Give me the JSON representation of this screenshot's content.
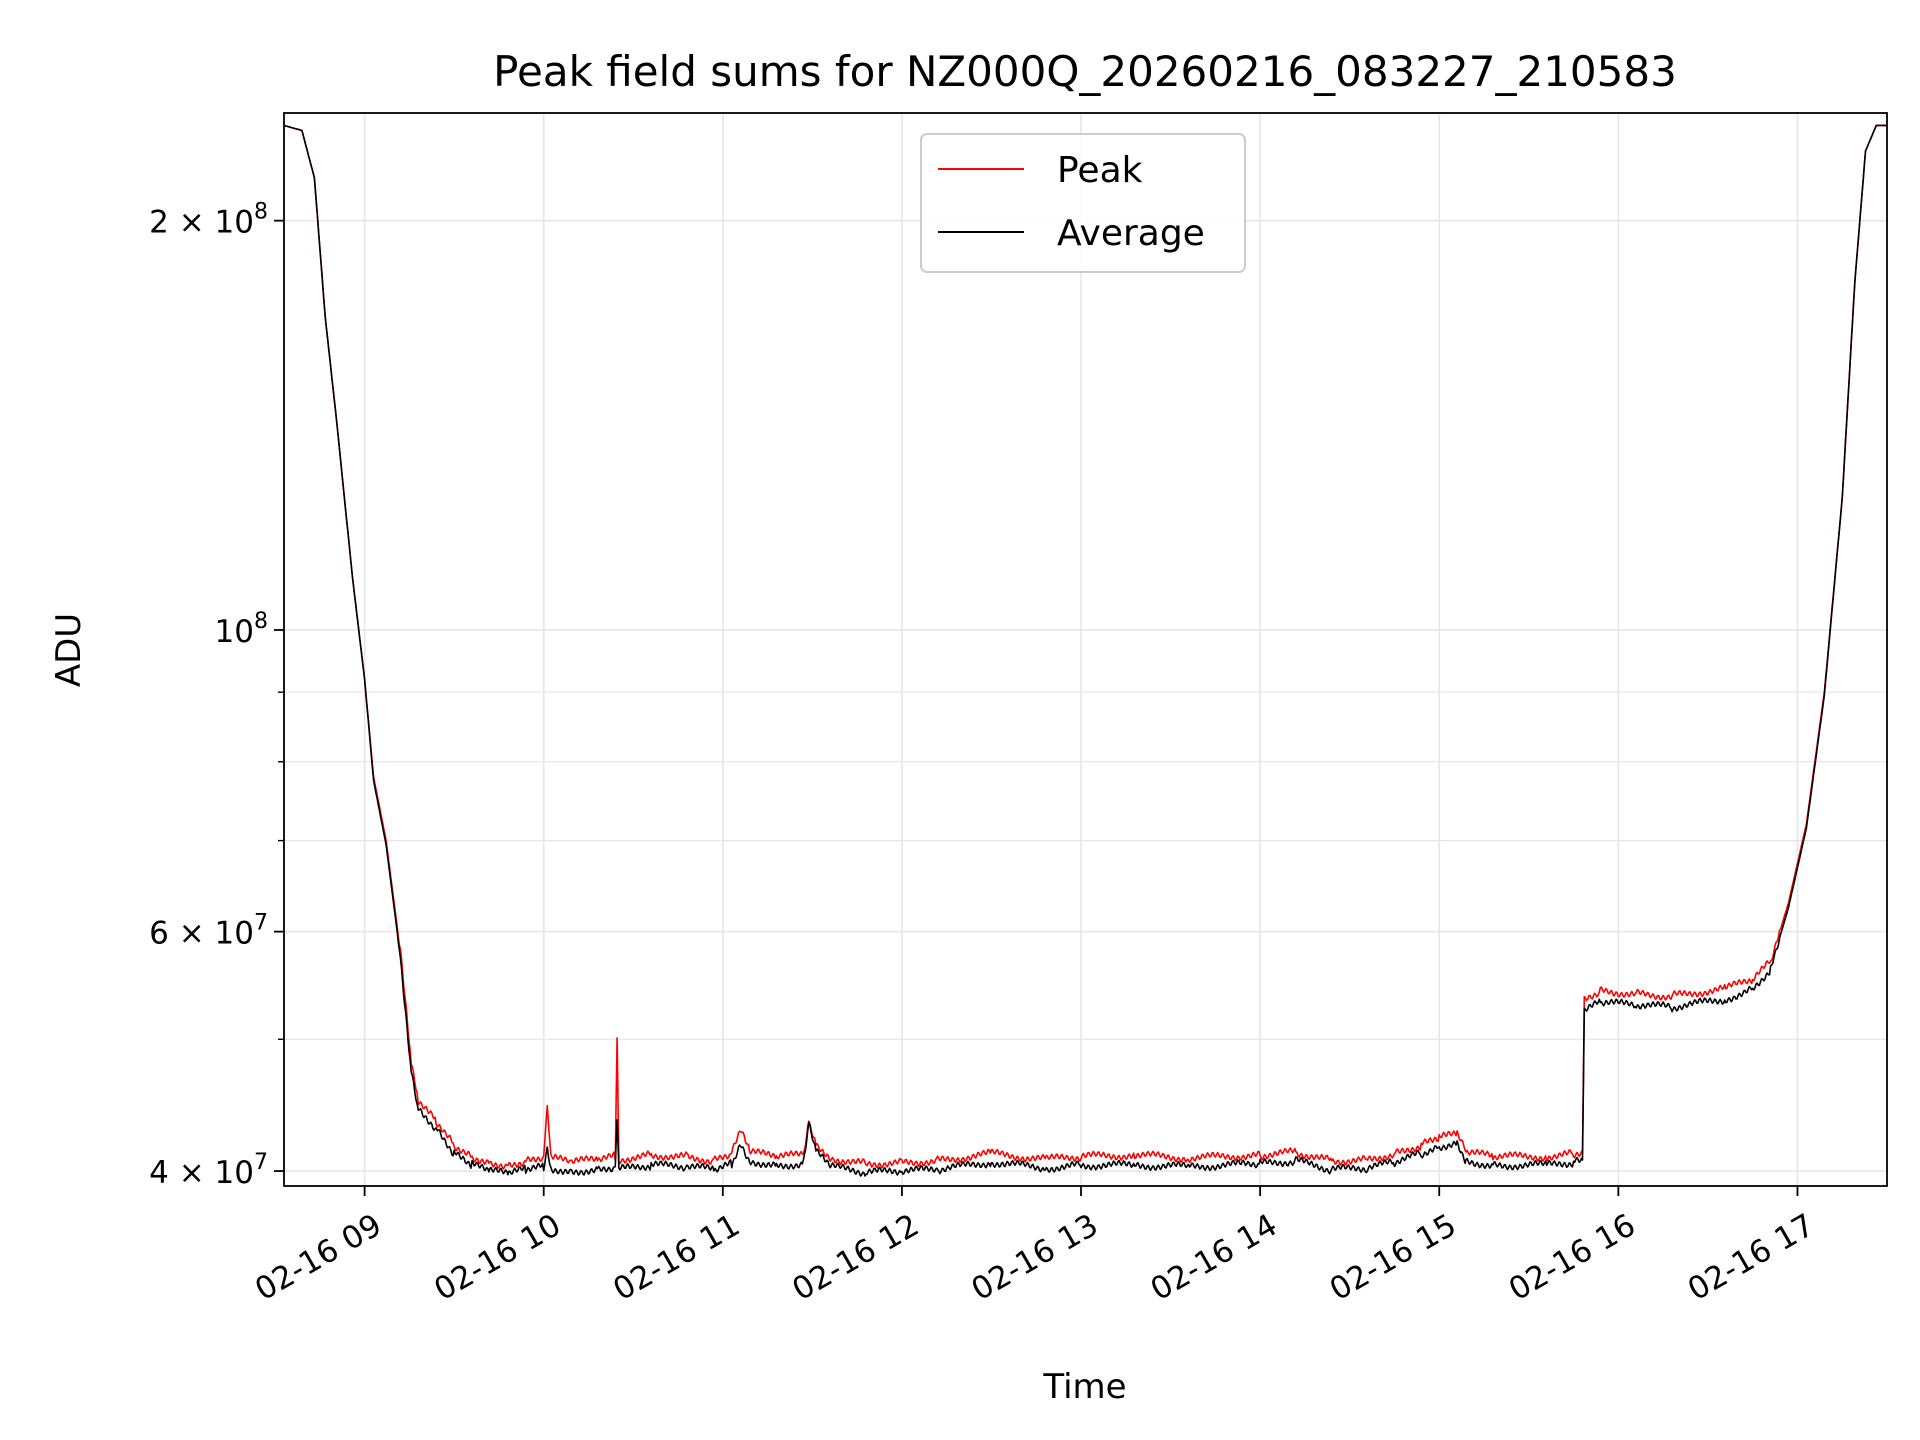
{
  "chart_data": {
    "type": "line",
    "title": "Peak field sums for NZ000Q_20260216_083227_210583",
    "xlabel": "Time",
    "ylabel": "ADU",
    "yscale": "log",
    "xlim_hours": [
      8.55,
      17.5
    ],
    "ylim": [
      39000000,
      240000000
    ],
    "grid": true,
    "legend_position": "upper center",
    "x_ticks": [
      {
        "hour": 9,
        "label": "02-16 09"
      },
      {
        "hour": 10,
        "label": "02-16 10"
      },
      {
        "hour": 11,
        "label": "02-16 11"
      },
      {
        "hour": 12,
        "label": "02-16 12"
      },
      {
        "hour": 13,
        "label": "02-16 13"
      },
      {
        "hour": 14,
        "label": "02-16 14"
      },
      {
        "hour": 15,
        "label": "02-16 15"
      },
      {
        "hour": 16,
        "label": "02-16 16"
      },
      {
        "hour": 17,
        "label": "02-16 17"
      }
    ],
    "y_major_ticks": [
      {
        "value": 40000000,
        "mant": "4",
        "op": "×",
        "base": "10",
        "exp": "7"
      },
      {
        "value": 60000000,
        "mant": "6",
        "op": "×",
        "base": "10",
        "exp": "7"
      },
      {
        "value": 100000000,
        "mant": "",
        "op": "",
        "base": "10",
        "exp": "8"
      },
      {
        "value": 200000000,
        "mant": "2",
        "op": "×",
        "base": "10",
        "exp": "8"
      }
    ],
    "y_minor_ticks": [
      50000000,
      70000000,
      80000000,
      90000000
    ],
    "series": [
      {
        "name": "Peak",
        "color": "#ff0000",
        "points": [
          [
            8.55,
            235000000
          ],
          [
            8.65,
            233000000
          ],
          [
            8.72,
            215000000
          ],
          [
            8.78,
            170000000
          ],
          [
            8.85,
            140000000
          ],
          [
            8.93,
            110000000
          ],
          [
            9.0,
            92000000
          ],
          [
            9.05,
            78000000
          ],
          [
            9.12,
            70000000
          ],
          [
            9.2,
            58000000
          ],
          [
            9.26,
            48000000
          ],
          [
            9.3,
            45000000
          ],
          [
            9.4,
            43500000
          ],
          [
            9.5,
            41800000
          ],
          [
            9.6,
            41000000
          ],
          [
            9.7,
            40600000
          ],
          [
            9.8,
            40400000
          ],
          [
            9.9,
            40700000
          ],
          [
            10.0,
            41000000
          ],
          [
            10.02,
            44500000
          ],
          [
            10.04,
            40900000
          ],
          [
            10.15,
            40600000
          ],
          [
            10.3,
            40800000
          ],
          [
            10.4,
            41000000
          ],
          [
            10.41,
            50500000
          ],
          [
            10.42,
            40800000
          ],
          [
            10.6,
            41100000
          ],
          [
            10.8,
            41000000
          ],
          [
            10.95,
            40700000
          ],
          [
            11.05,
            41200000
          ],
          [
            11.1,
            42800000
          ],
          [
            11.15,
            41300000
          ],
          [
            11.3,
            41000000
          ],
          [
            11.45,
            41100000
          ],
          [
            11.48,
            43600000
          ],
          [
            11.52,
            42000000
          ],
          [
            11.6,
            40900000
          ],
          [
            11.8,
            40500000
          ],
          [
            12.0,
            40600000
          ],
          [
            12.2,
            40700000
          ],
          [
            12.5,
            41200000
          ],
          [
            12.8,
            40800000
          ],
          [
            13.0,
            41000000
          ],
          [
            13.3,
            41100000
          ],
          [
            13.6,
            40900000
          ],
          [
            14.0,
            41100000
          ],
          [
            14.2,
            41300000
          ],
          [
            14.4,
            40700000
          ],
          [
            14.6,
            40800000
          ],
          [
            14.75,
            41200000
          ],
          [
            14.9,
            41800000
          ],
          [
            15.0,
            42300000
          ],
          [
            15.1,
            42600000
          ],
          [
            15.15,
            41300000
          ],
          [
            15.3,
            41000000
          ],
          [
            15.6,
            41000000
          ],
          [
            15.75,
            41200000
          ],
          [
            15.8,
            41400000
          ],
          [
            15.81,
            53500000
          ],
          [
            15.9,
            54300000
          ],
          [
            16.1,
            54000000
          ],
          [
            16.3,
            53800000
          ],
          [
            16.6,
            54500000
          ],
          [
            16.75,
            55300000
          ],
          [
            16.85,
            57000000
          ],
          [
            16.95,
            63000000
          ],
          [
            17.05,
            72000000
          ],
          [
            17.15,
            90000000
          ],
          [
            17.25,
            125000000
          ],
          [
            17.32,
            180000000
          ],
          [
            17.38,
            225000000
          ],
          [
            17.44,
            235000000
          ],
          [
            17.5,
            235000000
          ]
        ]
      },
      {
        "name": "Average",
        "color": "#000000",
        "points": [
          [
            8.55,
            235000000
          ],
          [
            8.65,
            233000000
          ],
          [
            8.72,
            215000000
          ],
          [
            8.78,
            170000000
          ],
          [
            8.85,
            140000000
          ],
          [
            8.93,
            110000000
          ],
          [
            9.0,
            92000000
          ],
          [
            9.05,
            77500000
          ],
          [
            9.12,
            69500000
          ],
          [
            9.2,
            57500000
          ],
          [
            9.26,
            47500000
          ],
          [
            9.3,
            44500000
          ],
          [
            9.4,
            43000000
          ],
          [
            9.5,
            41200000
          ],
          [
            9.6,
            40400000
          ],
          [
            9.7,
            40000000
          ],
          [
            9.8,
            39800000
          ],
          [
            9.9,
            40100000
          ],
          [
            10.0,
            40300000
          ],
          [
            10.02,
            41800000
          ],
          [
            10.04,
            40200000
          ],
          [
            10.15,
            40000000
          ],
          [
            10.3,
            40100000
          ],
          [
            10.4,
            40300000
          ],
          [
            10.41,
            43600000
          ],
          [
            10.42,
            40100000
          ],
          [
            10.6,
            40400000
          ],
          [
            10.8,
            40300000
          ],
          [
            10.95,
            40100000
          ],
          [
            11.05,
            40500000
          ],
          [
            11.1,
            42000000
          ],
          [
            11.15,
            40700000
          ],
          [
            11.3,
            40400000
          ],
          [
            11.45,
            40500000
          ],
          [
            11.48,
            43200000
          ],
          [
            11.52,
            41300000
          ],
          [
            11.6,
            40300000
          ],
          [
            11.8,
            39900000
          ],
          [
            12.0,
            40000000
          ],
          [
            12.2,
            40100000
          ],
          [
            12.5,
            40600000
          ],
          [
            12.8,
            40200000
          ],
          [
            13.0,
            40400000
          ],
          [
            13.3,
            40400000
          ],
          [
            13.6,
            40300000
          ],
          [
            14.0,
            40500000
          ],
          [
            14.2,
            40700000
          ],
          [
            14.4,
            40100000
          ],
          [
            14.6,
            40200000
          ],
          [
            14.75,
            40600000
          ],
          [
            14.9,
            41200000
          ],
          [
            15.0,
            41700000
          ],
          [
            15.1,
            42000000
          ],
          [
            15.15,
            40700000
          ],
          [
            15.3,
            40400000
          ],
          [
            15.6,
            40400000
          ],
          [
            15.75,
            40600000
          ],
          [
            15.8,
            40600000
          ],
          [
            15.81,
            52500000
          ],
          [
            15.9,
            53200000
          ],
          [
            16.1,
            53000000
          ],
          [
            16.3,
            52800000
          ],
          [
            16.6,
            53500000
          ],
          [
            16.75,
            54500000
          ],
          [
            16.85,
            56300000
          ],
          [
            16.95,
            62500000
          ],
          [
            17.05,
            71500000
          ],
          [
            17.15,
            89500000
          ],
          [
            17.25,
            125000000
          ],
          [
            17.32,
            180000000
          ],
          [
            17.38,
            225000000
          ],
          [
            17.44,
            235000000
          ],
          [
            17.5,
            235000000
          ]
        ]
      }
    ]
  }
}
